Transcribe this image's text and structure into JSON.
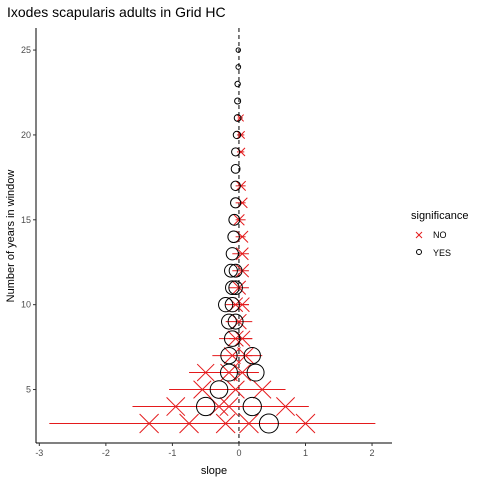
{
  "chart_data": {
    "type": "scatter",
    "title": "Ixodes scapularis adults in Grid HC",
    "xlabel": "slope",
    "ylabel": "Number of years in window",
    "xlim": [
      -3.05,
      2.3
    ],
    "ylim": [
      1.85,
      26.3
    ],
    "x_ticks": [
      -3,
      -2,
      -1,
      0,
      1,
      2
    ],
    "y_ticks": [
      5,
      10,
      15,
      20,
      25
    ],
    "reference_line": {
      "x": 0,
      "style": "dashed"
    },
    "grid": false,
    "legend": {
      "title": "significance",
      "position": "right",
      "entries": [
        {
          "label": "NO",
          "shape": "x",
          "color": "#e41a1c"
        },
        {
          "label": "YES",
          "shape": "circle",
          "color": "#000000"
        }
      ]
    },
    "series": [
      {
        "name": "NO",
        "shape": "x",
        "color": "#e41a1c",
        "points": [
          {
            "y": 3,
            "x": -1.35,
            "lo": -2.85,
            "hi": 0.05
          },
          {
            "y": 3,
            "x": -0.75,
            "lo": -2.25,
            "hi": 0.7
          },
          {
            "y": 3,
            "x": -0.2,
            "lo": -1.7,
            "hi": 1.3
          },
          {
            "y": 3,
            "x": 0.15,
            "lo": -1.2,
            "hi": 2.05
          },
          {
            "y": 3,
            "x": 1.0,
            "lo": -0.5,
            "hi": 2.0
          },
          {
            "y": 4,
            "x": -0.95,
            "lo": -1.6,
            "hi": -0.3
          },
          {
            "y": 4,
            "x": -0.15,
            "lo": -0.8,
            "hi": 0.5
          },
          {
            "y": 4,
            "x": 0.7,
            "lo": 0.1,
            "hi": 1.05
          },
          {
            "y": 4,
            "x": -0.3,
            "lo": -0.6,
            "hi": 0.2
          },
          {
            "y": 5,
            "x": -0.55,
            "lo": -1.05,
            "hi": -0.05
          },
          {
            "y": 5,
            "x": -0.05,
            "lo": -0.55,
            "hi": 0.45
          },
          {
            "y": 5,
            "x": 0.35,
            "lo": -0.1,
            "hi": 0.7
          },
          {
            "y": 6,
            "x": -0.5,
            "lo": -0.75,
            "hi": -0.1
          },
          {
            "y": 6,
            "x": -0.15,
            "lo": -0.45,
            "hi": 0.2
          },
          {
            "y": 6,
            "x": 0.05,
            "lo": -0.2,
            "hi": 0.3
          },
          {
            "y": 7,
            "x": -0.1,
            "lo": -0.4,
            "hi": 0.2
          },
          {
            "y": 7,
            "x": 0.1,
            "lo": -0.1,
            "hi": 0.35
          },
          {
            "y": 8,
            "x": -0.05,
            "lo": -0.3,
            "hi": 0.2
          },
          {
            "y": 8,
            "x": 0.05,
            "lo": -0.15,
            "hi": 0.2
          },
          {
            "y": 9,
            "x": 0.0,
            "lo": -0.2,
            "hi": 0.2
          },
          {
            "y": 10,
            "x": -0.05,
            "lo": -0.2,
            "hi": 0.15
          },
          {
            "y": 10,
            "x": 0.05,
            "lo": -0.1,
            "hi": 0.15
          },
          {
            "y": 11,
            "x": 0.0,
            "lo": -0.15,
            "hi": 0.15
          },
          {
            "y": 12,
            "x": 0.05,
            "lo": -0.1,
            "hi": 0.15
          },
          {
            "y": 13,
            "x": 0.05,
            "lo": -0.1,
            "hi": 0.15
          },
          {
            "y": 14,
            "x": 0.05,
            "lo": -0.05,
            "hi": 0.1
          },
          {
            "y": 15,
            "x": 0.0,
            "lo": -0.05,
            "hi": 0.1
          },
          {
            "y": 16,
            "x": 0.05,
            "lo": -0.05,
            "hi": 0.1
          },
          {
            "y": 17,
            "x": 0.03,
            "lo": -0.05,
            "hi": 0.1
          },
          {
            "y": 19,
            "x": 0.03,
            "lo": -0.03,
            "hi": 0.08
          },
          {
            "y": 20,
            "x": 0.03,
            "lo": -0.03,
            "hi": 0.08
          },
          {
            "y": 21,
            "x": 0.02,
            "lo": -0.02,
            "hi": 0.06
          }
        ]
      },
      {
        "name": "YES",
        "shape": "circle",
        "color": "#000000",
        "points": [
          {
            "y": 3,
            "x": 0.45
          },
          {
            "y": 4,
            "x": -0.5
          },
          {
            "y": 4,
            "x": 0.2
          },
          {
            "y": 5,
            "x": -0.3
          },
          {
            "y": 6,
            "x": -0.15
          },
          {
            "y": 6,
            "x": 0.25
          },
          {
            "y": 7,
            "x": -0.15
          },
          {
            "y": 7,
            "x": 0.2
          },
          {
            "y": 8,
            "x": -0.1
          },
          {
            "y": 9,
            "x": -0.15
          },
          {
            "y": 9,
            "x": -0.05
          },
          {
            "y": 10,
            "x": -0.2
          },
          {
            "y": 10,
            "x": -0.1
          },
          {
            "y": 11,
            "x": -0.1
          },
          {
            "y": 11,
            "x": -0.05
          },
          {
            "y": 12,
            "x": -0.12
          },
          {
            "y": 12,
            "x": -0.05
          },
          {
            "y": 13,
            "x": -0.1
          },
          {
            "y": 14,
            "x": -0.08
          },
          {
            "y": 15,
            "x": -0.07
          },
          {
            "y": 16,
            "x": -0.05
          },
          {
            "y": 17,
            "x": -0.05
          },
          {
            "y": 18,
            "x": -0.05
          },
          {
            "y": 19,
            "x": -0.05
          },
          {
            "y": 20,
            "x": -0.03
          },
          {
            "y": 21,
            "x": -0.02
          },
          {
            "y": 22,
            "x": -0.02
          },
          {
            "y": 23,
            "x": -0.02
          },
          {
            "y": 24,
            "x": -0.01
          },
          {
            "y": 25,
            "x": -0.01
          }
        ]
      }
    ]
  }
}
